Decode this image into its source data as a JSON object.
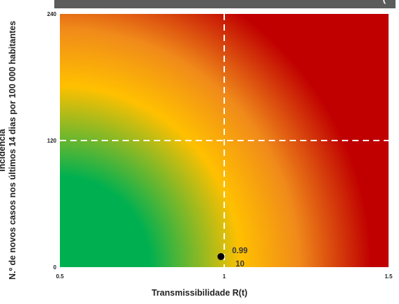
{
  "chart_data": {
    "type": "scatter",
    "title": "",
    "xlabel": "Transmissibilidade R(t)",
    "ylabel_lines": [
      "Incidência",
      "N.º de novos casos nos últimos 14 dias por 100 000 habitantes"
    ],
    "xlim": [
      0.5,
      1.5
    ],
    "ylim": [
      0,
      240
    ],
    "x_ticks": [
      0.5,
      1,
      1.5
    ],
    "x_tick_labels": [
      "0.5",
      "1",
      "1.5"
    ],
    "y_ticks": [
      0,
      120,
      240
    ],
    "y_tick_labels": [
      "0",
      "120",
      "240"
    ],
    "threshold_x": 1,
    "threshold_y": 120,
    "background": "gradient green (low risk, bottom-left) to yellow to red (high risk, top-right)",
    "points": [
      {
        "x": 0.99,
        "y": 10,
        "label_x": "0.99",
        "label_y": "10"
      }
    ],
    "grid": false,
    "legend": "none"
  },
  "colors": {
    "green": "#00b050",
    "yellow": "#ffc000",
    "red": "#c00000",
    "guide_lines": "#ffffff",
    "point": "#000000",
    "header_bar": "#5c5c5c"
  }
}
